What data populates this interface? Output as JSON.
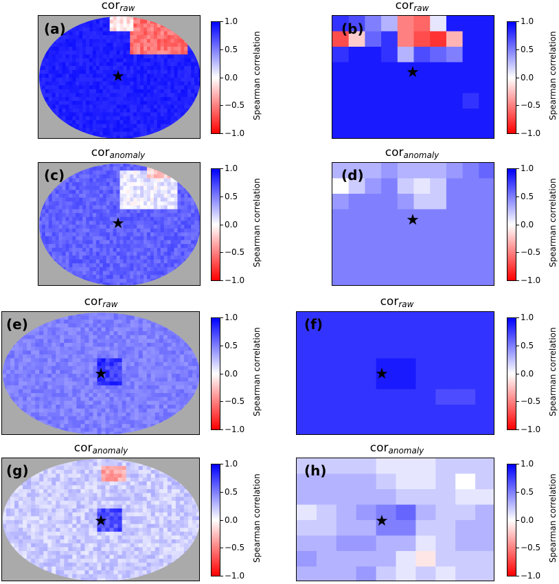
{
  "chart_data": {
    "type": "heatmap",
    "colormap": {
      "min_color": "#ff0000",
      "mid_color": "#ffffff",
      "max_color": "#0000ff"
    },
    "nodata_color": "#aaaaaa",
    "colorbar": {
      "label": "Spearman correlation",
      "ticks": [
        "1.0",
        "0.5",
        "0.0",
        "−0.5",
        "−1.0"
      ],
      "range": [
        -1.0,
        1.0
      ]
    },
    "marker": "★",
    "panels": [
      {
        "id": "a",
        "label": "(a)",
        "title_main": "cor",
        "title_sub": "raw",
        "shape": "ellipse"
      },
      {
        "id": "b",
        "label": "(b)",
        "title_main": "cor",
        "title_sub": "raw",
        "shape": "grid",
        "grid": [
          [
            0.8,
            0.7,
            0.5,
            0.3,
            -0.5,
            -0.6,
            0.1,
            0.9,
            0.9,
            0.9
          ],
          [
            -0.7,
            -0.2,
            0.6,
            0.8,
            -0.5,
            -0.7,
            -0.8,
            -0.3,
            0.9,
            0.9
          ],
          [
            0.8,
            0.9,
            0.9,
            0.8,
            0.3,
            0.7,
            0.6,
            0.5,
            0.9,
            0.9
          ],
          [
            0.9,
            0.9,
            0.9,
            0.9,
            0.9,
            0.9,
            0.9,
            0.9,
            0.9,
            0.9
          ],
          [
            0.9,
            0.9,
            0.9,
            0.9,
            0.9,
            0.9,
            0.9,
            0.9,
            0.9,
            0.9
          ],
          [
            0.9,
            0.9,
            0.9,
            0.9,
            0.9,
            0.9,
            0.9,
            0.9,
            0.8,
            0.9
          ],
          [
            0.9,
            0.9,
            0.9,
            0.9,
            0.9,
            0.9,
            0.9,
            0.9,
            0.9,
            0.9
          ],
          [
            0.9,
            0.9,
            0.9,
            0.9,
            0.9,
            0.9,
            0.9,
            0.9,
            0.9,
            0.9
          ]
        ]
      },
      {
        "id": "c",
        "label": "(c)",
        "title_main": "cor",
        "title_sub": "anomaly",
        "shape": "ellipse"
      },
      {
        "id": "d",
        "label": "(d)",
        "title_main": "cor",
        "title_sub": "anomaly",
        "shape": "grid",
        "grid": [
          [
            0.3,
            0.3,
            0.3,
            0.4,
            0.3,
            0.3,
            0.3,
            0.4,
            0.5,
            0.6
          ],
          [
            0.0,
            0.2,
            0.4,
            0.5,
            0.2,
            0.1,
            0.2,
            0.5,
            0.5,
            0.5
          ],
          [
            0.4,
            0.5,
            0.5,
            0.5,
            0.4,
            0.2,
            0.2,
            0.5,
            0.5,
            0.5
          ],
          [
            0.5,
            0.5,
            0.5,
            0.5,
            0.5,
            0.5,
            0.5,
            0.5,
            0.5,
            0.5
          ],
          [
            0.5,
            0.5,
            0.5,
            0.5,
            0.5,
            0.5,
            0.5,
            0.5,
            0.5,
            0.5
          ],
          [
            0.5,
            0.5,
            0.5,
            0.5,
            0.5,
            0.5,
            0.5,
            0.5,
            0.5,
            0.5
          ],
          [
            0.5,
            0.5,
            0.5,
            0.5,
            0.5,
            0.5,
            0.5,
            0.5,
            0.5,
            0.5
          ],
          [
            0.5,
            0.5,
            0.5,
            0.5,
            0.5,
            0.5,
            0.5,
            0.5,
            0.5,
            0.5
          ]
        ]
      },
      {
        "id": "e",
        "label": "(e)",
        "title_main": "cor",
        "title_sub": "raw",
        "shape": "ellipse"
      },
      {
        "id": "f",
        "label": "(f)",
        "title_main": "cor",
        "title_sub": "raw",
        "shape": "grid",
        "grid": [
          [
            0.8,
            0.8,
            0.8,
            0.8,
            0.8,
            0.8,
            0.8,
            0.8,
            0.8,
            0.8
          ],
          [
            0.8,
            0.8,
            0.8,
            0.8,
            0.8,
            0.8,
            0.8,
            0.8,
            0.8,
            0.8
          ],
          [
            0.8,
            0.8,
            0.8,
            0.8,
            0.8,
            0.8,
            0.8,
            0.8,
            0.8,
            0.8
          ],
          [
            0.8,
            0.8,
            0.8,
            0.8,
            0.9,
            0.9,
            0.8,
            0.8,
            0.8,
            0.8
          ],
          [
            0.8,
            0.8,
            0.8,
            0.8,
            0.9,
            0.9,
            0.8,
            0.8,
            0.8,
            0.8
          ],
          [
            0.8,
            0.8,
            0.8,
            0.8,
            0.8,
            0.8,
            0.8,
            0.7,
            0.7,
            0.8
          ],
          [
            0.8,
            0.8,
            0.8,
            0.8,
            0.8,
            0.8,
            0.8,
            0.8,
            0.8,
            0.8
          ],
          [
            0.8,
            0.8,
            0.8,
            0.8,
            0.8,
            0.8,
            0.8,
            0.8,
            0.8,
            0.8
          ]
        ]
      },
      {
        "id": "g",
        "label": "(g)",
        "title_main": "cor",
        "title_sub": "anomaly",
        "shape": "ellipse"
      },
      {
        "id": "h",
        "label": "(h)",
        "title_main": "cor",
        "title_sub": "anomaly",
        "shape": "grid",
        "grid": [
          [
            0.2,
            0.2,
            0.2,
            0.2,
            0.1,
            0.1,
            0.1,
            0.2,
            0.2,
            0.2
          ],
          [
            0.3,
            0.3,
            0.3,
            0.3,
            0.2,
            0.1,
            0.1,
            0.2,
            0.0,
            0.2
          ],
          [
            0.3,
            0.3,
            0.3,
            0.3,
            0.3,
            0.2,
            0.2,
            0.2,
            0.1,
            0.1
          ],
          [
            0.1,
            0.2,
            0.3,
            0.4,
            0.5,
            0.6,
            0.3,
            0.2,
            0.2,
            0.3
          ],
          [
            0.2,
            0.2,
            0.3,
            0.3,
            0.5,
            0.5,
            0.2,
            0.2,
            0.3,
            0.3
          ],
          [
            0.3,
            0.3,
            0.4,
            0.4,
            0.3,
            0.3,
            0.1,
            0.2,
            0.3,
            0.3
          ],
          [
            0.4,
            0.3,
            0.3,
            0.3,
            0.3,
            0.1,
            -0.1,
            0.2,
            0.2,
            0.2
          ],
          [
            0.3,
            0.3,
            0.3,
            0.4,
            0.2,
            0.1,
            0.2,
            0.1,
            0.2,
            0.2
          ]
        ]
      }
    ]
  }
}
